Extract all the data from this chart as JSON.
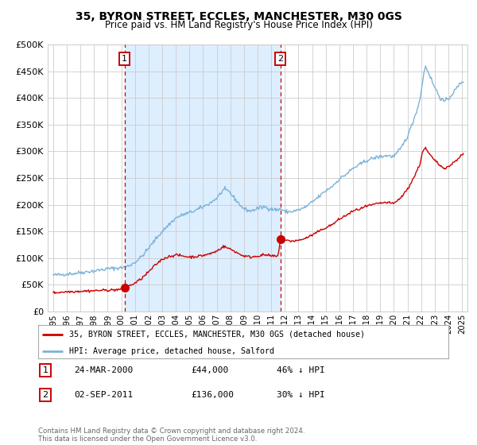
{
  "title": "35, BYRON STREET, ECCLES, MANCHESTER, M30 0GS",
  "subtitle": "Price paid vs. HM Land Registry's House Price Index (HPI)",
  "legend_line1": "35, BYRON STREET, ECCLES, MANCHESTER, M30 0GS (detached house)",
  "legend_line2": "HPI: Average price, detached house, Salford",
  "footnote": "Contains HM Land Registry data © Crown copyright and database right 2024.\nThis data is licensed under the Open Government Licence v3.0.",
  "marker1_date_label": "24-MAR-2000",
  "marker1_price_label": "£44,000",
  "marker1_hpi_label": "46% ↓ HPI",
  "marker2_date_label": "02-SEP-2011",
  "marker2_price_label": "£136,000",
  "marker2_hpi_label": "30% ↓ HPI",
  "marker1_x": 2000.23,
  "marker1_y": 44000,
  "marker2_x": 2011.67,
  "marker2_y": 136000,
  "vline1_x": 2000.23,
  "vline2_x": 2011.67,
  "shaded_start": 2000.23,
  "shaded_end": 2011.67,
  "ylim": [
    0,
    500000
  ],
  "xlim_start": 1994.6,
  "xlim_end": 2025.4,
  "hpi_color": "#7ab3d9",
  "property_color": "#cc0000",
  "shaded_color": "#ddeeff",
  "vline_color": "#cc0000",
  "background_color": "#ffffff",
  "grid_color": "#cccccc",
  "hpi_anchors": [
    [
      1995.0,
      68000
    ],
    [
      1995.5,
      69000
    ],
    [
      1996.0,
      70500
    ],
    [
      1996.5,
      71000
    ],
    [
      1997.0,
      73000
    ],
    [
      1997.5,
      74500
    ],
    [
      1998.0,
      76000
    ],
    [
      1998.5,
      78000
    ],
    [
      1999.0,
      80000
    ],
    [
      1999.5,
      81000
    ],
    [
      2000.0,
      82000
    ],
    [
      2000.5,
      85000
    ],
    [
      2001.0,
      92000
    ],
    [
      2001.5,
      103000
    ],
    [
      2002.0,
      118000
    ],
    [
      2002.5,
      135000
    ],
    [
      2003.0,
      150000
    ],
    [
      2003.5,
      163000
    ],
    [
      2004.0,
      175000
    ],
    [
      2004.5,
      181000
    ],
    [
      2005.0,
      185000
    ],
    [
      2005.5,
      190000
    ],
    [
      2006.0,
      196000
    ],
    [
      2006.5,
      203000
    ],
    [
      2007.0,
      212000
    ],
    [
      2007.5,
      228000
    ],
    [
      2007.9,
      225000
    ],
    [
      2008.3,
      212000
    ],
    [
      2008.7,
      200000
    ],
    [
      2009.0,
      192000
    ],
    [
      2009.5,
      188000
    ],
    [
      2010.0,
      193000
    ],
    [
      2010.5,
      196000
    ],
    [
      2011.0,
      192000
    ],
    [
      2011.5,
      190000
    ],
    [
      2011.67,
      193000
    ],
    [
      2012.0,
      187000
    ],
    [
      2012.5,
      187000
    ],
    [
      2013.0,
      190000
    ],
    [
      2013.5,
      195000
    ],
    [
      2014.0,
      205000
    ],
    [
      2014.5,
      215000
    ],
    [
      2015.0,
      226000
    ],
    [
      2015.5,
      235000
    ],
    [
      2016.0,
      248000
    ],
    [
      2016.5,
      257000
    ],
    [
      2017.0,
      268000
    ],
    [
      2017.5,
      275000
    ],
    [
      2018.0,
      283000
    ],
    [
      2018.5,
      287000
    ],
    [
      2019.0,
      290000
    ],
    [
      2019.5,
      292000
    ],
    [
      2020.0,
      290000
    ],
    [
      2020.5,
      305000
    ],
    [
      2021.0,
      328000
    ],
    [
      2021.3,
      348000
    ],
    [
      2021.6,
      370000
    ],
    [
      2021.9,
      395000
    ],
    [
      2022.1,
      430000
    ],
    [
      2022.3,
      460000
    ],
    [
      2022.5,
      450000
    ],
    [
      2022.7,
      438000
    ],
    [
      2022.9,
      425000
    ],
    [
      2023.1,
      415000
    ],
    [
      2023.4,
      400000
    ],
    [
      2023.7,
      393000
    ],
    [
      2024.0,
      398000
    ],
    [
      2024.3,
      408000
    ],
    [
      2024.6,
      418000
    ],
    [
      2024.9,
      428000
    ],
    [
      2025.1,
      432000
    ]
  ],
  "prop_anchors": [
    [
      1995.0,
      35000
    ],
    [
      1995.5,
      36000
    ],
    [
      1996.0,
      37000
    ],
    [
      1996.5,
      37500
    ],
    [
      1997.0,
      38000
    ],
    [
      1997.5,
      38500
    ],
    [
      1998.0,
      39000
    ],
    [
      1998.5,
      39500
    ],
    [
      1999.0,
      40000
    ],
    [
      1999.5,
      40500
    ],
    [
      2000.0,
      41500
    ],
    [
      2000.23,
      44000
    ],
    [
      2000.5,
      47000
    ],
    [
      2001.0,
      53000
    ],
    [
      2001.5,
      62000
    ],
    [
      2002.0,
      74000
    ],
    [
      2002.5,
      87000
    ],
    [
      2003.0,
      98000
    ],
    [
      2003.5,
      103000
    ],
    [
      2004.0,
      106000
    ],
    [
      2004.5,
      104000
    ],
    [
      2005.0,
      102000
    ],
    [
      2005.5,
      103000
    ],
    [
      2006.0,
      105000
    ],
    [
      2006.5,
      108000
    ],
    [
      2007.0,
      113000
    ],
    [
      2007.5,
      122000
    ],
    [
      2007.9,
      118000
    ],
    [
      2008.3,
      113000
    ],
    [
      2008.7,
      107000
    ],
    [
      2009.0,
      104000
    ],
    [
      2009.5,
      102000
    ],
    [
      2010.0,
      104000
    ],
    [
      2010.5,
      106000
    ],
    [
      2011.0,
      104000
    ],
    [
      2011.5,
      103000
    ],
    [
      2011.67,
      136000
    ],
    [
      2012.0,
      133000
    ],
    [
      2012.5,
      132000
    ],
    [
      2013.0,
      133000
    ],
    [
      2013.5,
      137000
    ],
    [
      2014.0,
      143000
    ],
    [
      2014.5,
      150000
    ],
    [
      2015.0,
      157000
    ],
    [
      2015.5,
      163000
    ],
    [
      2016.0,
      173000
    ],
    [
      2016.5,
      180000
    ],
    [
      2017.0,
      188000
    ],
    [
      2017.5,
      192000
    ],
    [
      2018.0,
      197000
    ],
    [
      2018.5,
      200000
    ],
    [
      2019.0,
      203000
    ],
    [
      2019.5,
      204000
    ],
    [
      2020.0,
      202000
    ],
    [
      2020.5,
      213000
    ],
    [
      2021.0,
      229000
    ],
    [
      2021.3,
      243000
    ],
    [
      2021.6,
      258000
    ],
    [
      2021.9,
      275000
    ],
    [
      2022.1,
      299000
    ],
    [
      2022.3,
      307000
    ],
    [
      2022.5,
      298000
    ],
    [
      2022.7,
      292000
    ],
    [
      2022.9,
      285000
    ],
    [
      2023.1,
      281000
    ],
    [
      2023.4,
      273000
    ],
    [
      2023.7,
      269000
    ],
    [
      2024.0,
      271000
    ],
    [
      2024.3,
      277000
    ],
    [
      2024.6,
      284000
    ],
    [
      2024.9,
      291000
    ],
    [
      2025.1,
      295000
    ]
  ]
}
